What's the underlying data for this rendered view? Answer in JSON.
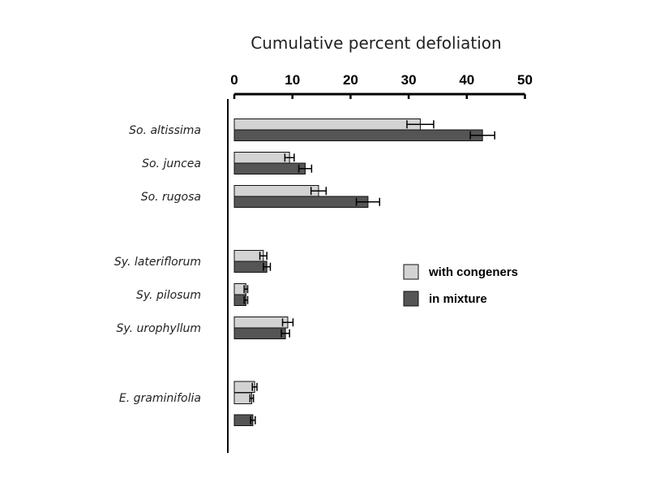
{
  "chart_data": {
    "type": "bar",
    "orientation": "horizontal",
    "title": "Cumulative percent defoliation",
    "xlabel": "",
    "ylabel": "",
    "xlim": [
      0,
      50
    ],
    "x_ticks": [
      "0",
      "10",
      "20",
      "30",
      "40",
      "50"
    ],
    "axis_position": "top",
    "grid": false,
    "legend_position": "right",
    "categories": [
      "So. altissima",
      "So. juncea",
      "So. rugosa",
      "Sy. lateriflorum",
      "Sy. pilosum",
      "Sy. urophyllum",
      "E. graminifolia"
    ],
    "series": [
      {
        "name": "with congeners",
        "color": "#d3d3d3",
        "values": [
          32,
          9.5,
          14.5,
          5,
          2,
          9.2,
          3.5
        ],
        "errors": [
          2.3,
          0.8,
          1.3,
          0.6,
          0.3,
          0.9,
          0.4
        ],
        "extra_values": [
          null,
          null,
          null,
          null,
          null,
          null,
          3
        ]
      },
      {
        "name": "in mixture",
        "color": "#555555",
        "values": [
          42.7,
          12.2,
          23,
          5.6,
          2,
          8.8,
          3.2
        ],
        "errors": [
          2.1,
          1.1,
          2,
          0.6,
          0.3,
          0.7,
          0.4
        ]
      }
    ]
  }
}
